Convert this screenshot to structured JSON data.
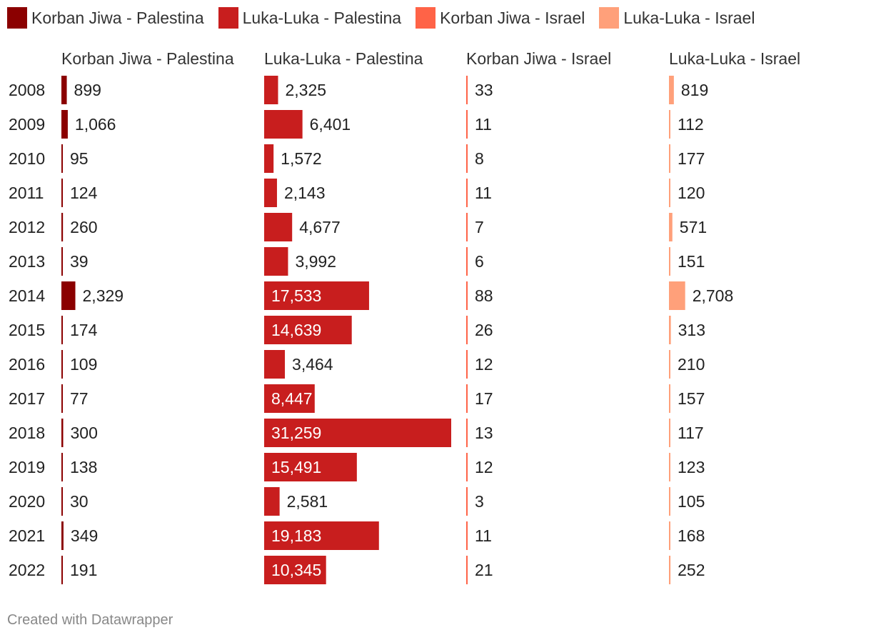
{
  "chart_data": {
    "type": "bar",
    "categories": [
      "2008",
      "2009",
      "2010",
      "2011",
      "2012",
      "2013",
      "2014",
      "2015",
      "2016",
      "2017",
      "2018",
      "2019",
      "2020",
      "2021",
      "2022"
    ],
    "series": [
      {
        "name": "Korban Jiwa - Palestina",
        "color": "#8b0000",
        "values": [
          899,
          1066,
          95,
          124,
          260,
          39,
          2329,
          174,
          109,
          77,
          300,
          138,
          30,
          349,
          191
        ],
        "labels": [
          "899",
          "1,066",
          "95",
          "124",
          "260",
          "39",
          "2,329",
          "174",
          "109",
          "77",
          "300",
          "138",
          "30",
          "349",
          "191"
        ]
      },
      {
        "name": "Luka-Luka - Palestina",
        "color": "#c81e1e",
        "values": [
          2325,
          6401,
          1572,
          2143,
          4677,
          3992,
          17533,
          14639,
          3464,
          8447,
          31259,
          15491,
          2581,
          19183,
          10345
        ],
        "labels": [
          "2,325",
          "6,401",
          "1,572",
          "2,143",
          "4,677",
          "3,992",
          "17,533",
          "14,639",
          "3,464",
          "8,447",
          "31,259",
          "15,491",
          "2,581",
          "19,183",
          "10,345"
        ]
      },
      {
        "name": "Korban Jiwa - Israel",
        "color": "#ff6347",
        "values": [
          33,
          11,
          8,
          11,
          7,
          6,
          88,
          26,
          12,
          17,
          13,
          12,
          3,
          11,
          21
        ],
        "labels": [
          "33",
          "11",
          "8",
          "11",
          "7",
          "6",
          "88",
          "26",
          "12",
          "17",
          "13",
          "12",
          "3",
          "11",
          "21"
        ]
      },
      {
        "name": "Luka-Luka - Israel",
        "color": "#ffa07a",
        "values": [
          819,
          112,
          177,
          120,
          571,
          151,
          2708,
          313,
          210,
          157,
          117,
          123,
          105,
          168,
          252
        ],
        "labels": [
          "819",
          "112",
          "177",
          "120",
          "571",
          "151",
          "2,708",
          "313",
          "210",
          "157",
          "117",
          "123",
          "105",
          "168",
          "252"
        ]
      }
    ]
  },
  "footer": "Created with Datawrapper"
}
